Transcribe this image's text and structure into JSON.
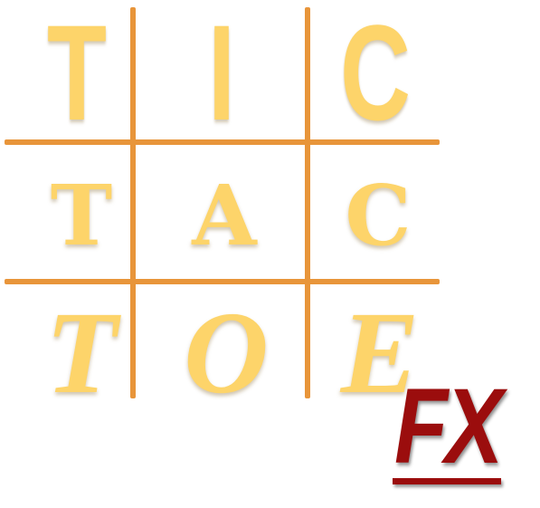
{
  "logo": {
    "rows": [
      [
        "T",
        "I",
        "C"
      ],
      [
        "T",
        "A",
        "C"
      ],
      [
        "T",
        "O",
        "E"
      ]
    ],
    "badge": "FX"
  },
  "colors": {
    "letters": "#fdd46a",
    "grid": "#e8953a",
    "badge": "#9b0d0d",
    "background": "#ffffff"
  }
}
